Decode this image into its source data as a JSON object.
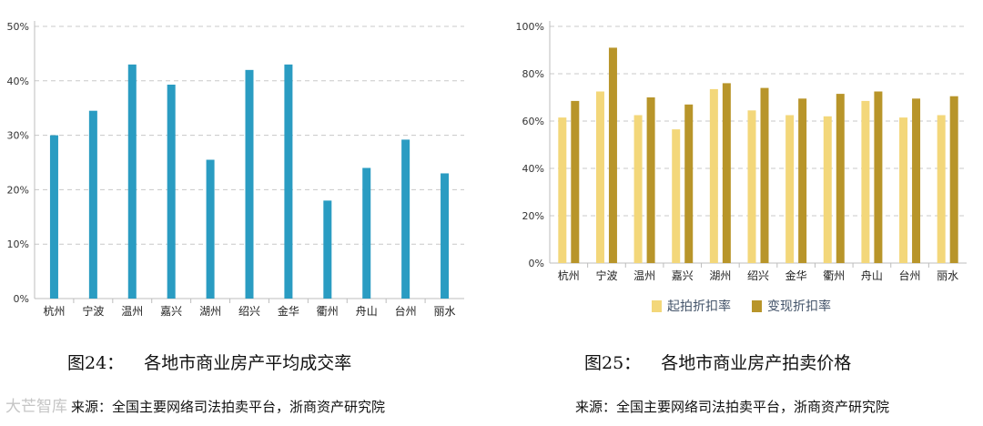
{
  "figures": [
    {
      "caption_num": "图24：",
      "caption_title": "各地市商业房产平均成交率",
      "source": "来源：全国主要网络司法拍卖平台，浙商资产研究院"
    },
    {
      "caption_num": "图25：",
      "caption_title": "各地市商业房产拍卖价格",
      "source": "来源：全国主要网络司法拍卖平台，浙商资产研究院"
    }
  ],
  "watermark": "大芒智库",
  "colors": {
    "bar1": "#2a9cc2",
    "start": "#f3d77a",
    "final": "#b8952a"
  },
  "chart_data": [
    {
      "type": "bar",
      "title": "",
      "categories": [
        "杭州",
        "宁波",
        "温州",
        "嘉兴",
        "湖州",
        "绍兴",
        "金华",
        "衢州",
        "舟山",
        "台州",
        "丽水"
      ],
      "values": [
        30,
        34.5,
        43,
        39.3,
        25.5,
        42,
        43,
        18,
        24,
        29.2,
        23
      ],
      "ylim": [
        0,
        50
      ],
      "yticks": [
        "0%",
        "10%",
        "20%",
        "30%",
        "40%",
        "50%"
      ],
      "grid": true
    },
    {
      "type": "bar",
      "title": "",
      "categories": [
        "杭州",
        "宁波",
        "温州",
        "嘉兴",
        "湖州",
        "绍兴",
        "金华",
        "衢州",
        "舟山",
        "台州",
        "丽水"
      ],
      "series": [
        {
          "name": "起拍折扣率",
          "values": [
            61.5,
            72.5,
            62.5,
            56.5,
            73.5,
            64.5,
            62.5,
            62,
            68.5,
            61.5,
            62.5
          ]
        },
        {
          "name": "变现折扣率",
          "values": [
            68.5,
            91,
            70,
            67,
            76,
            74,
            69.5,
            71.5,
            72.5,
            69.5,
            70.5
          ]
        }
      ],
      "ylim": [
        0,
        100
      ],
      "yticks": [
        "0%",
        "20%",
        "40%",
        "60%",
        "80%",
        "100%"
      ],
      "legend": "bottom",
      "grid": true
    }
  ]
}
